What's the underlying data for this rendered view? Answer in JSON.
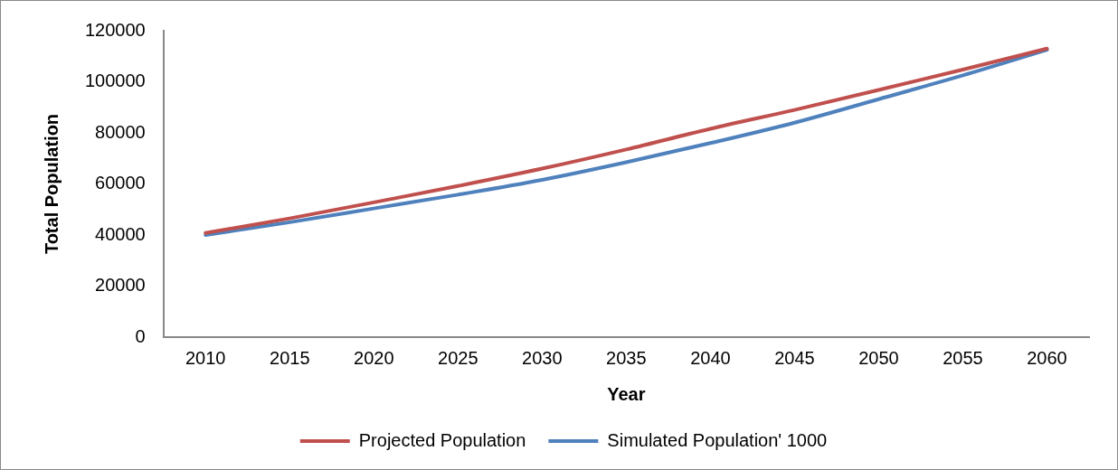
{
  "chart_data": {
    "type": "line",
    "xlabel": "Year",
    "ylabel": "Total Population",
    "categories": [
      "2010",
      "2015",
      "2020",
      "2025",
      "2030",
      "2035",
      "2040",
      "2045",
      "2050",
      "2055",
      "2060"
    ],
    "series": [
      {
        "name": "Projected Population",
        "color": "#c0504d",
        "values": [
          40800,
          46500,
          52800,
          59200,
          66000,
          73500,
          81600,
          89000,
          96800,
          104800,
          113000
        ]
      },
      {
        "name": "Simulated Population' 1000",
        "color": "#4f81bd",
        "values": [
          40000,
          45000,
          50400,
          55800,
          61600,
          68500,
          76000,
          84000,
          93200,
          102500,
          112500
        ]
      }
    ],
    "ylim": [
      0,
      120000
    ],
    "yticks": [
      0,
      20000,
      40000,
      60000,
      80000,
      100000,
      120000
    ],
    "grid": false,
    "legend": "bottom",
    "marker": "none",
    "line_style": "solid"
  }
}
